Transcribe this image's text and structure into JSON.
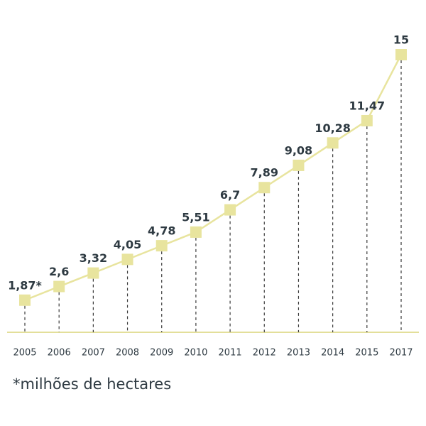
{
  "chart_data": {
    "type": "line",
    "categories": [
      "2005",
      "2006",
      "2007",
      "2008",
      "2009",
      "2010",
      "2011",
      "2012",
      "2013",
      "2014",
      "2015",
      "2017"
    ],
    "values": [
      1.87,
      2.6,
      3.32,
      4.05,
      4.78,
      5.51,
      6.7,
      7.89,
      9.08,
      10.28,
      11.47,
      15
    ],
    "value_labels": [
      "1,87*",
      "2,6",
      "3,32",
      "4,05",
      "4,78",
      "5,51",
      "6,7",
      "7,89",
      "9,08",
      "10,28",
      "11,47",
      "15"
    ],
    "color": "#e8e49e",
    "note": "*milhões de hectares"
  }
}
